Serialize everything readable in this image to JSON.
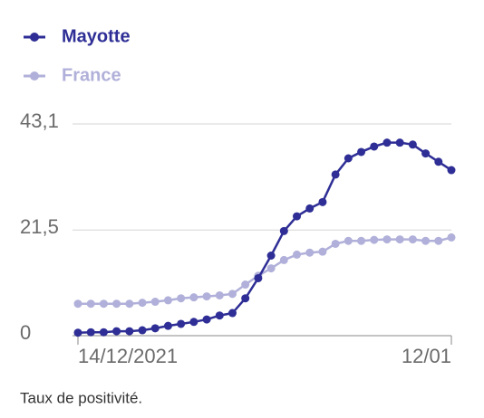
{
  "chart_data": {
    "type": "line",
    "categories": [
      "14/12/2021",
      null,
      null,
      null,
      null,
      null,
      null,
      null,
      null,
      null,
      null,
      null,
      null,
      null,
      null,
      null,
      null,
      null,
      null,
      null,
      null,
      null,
      null,
      null,
      null,
      null,
      null,
      null,
      null,
      "12/01"
    ],
    "series": [
      {
        "name": "Mayotte",
        "color": "#2e2e96",
        "values": [
          0.6,
          0.7,
          0.7,
          0.9,
          0.9,
          1.1,
          1.5,
          2.0,
          2.4,
          2.8,
          3.3,
          4.1,
          4.6,
          7.6,
          11.7,
          16.3,
          21.3,
          24.3,
          25.9,
          27.2,
          32.8,
          36.1,
          37.4,
          38.5,
          39.3,
          39.3,
          38.9,
          37.1,
          35.4,
          33.7
        ]
      },
      {
        "name": "France",
        "color": "#b0b0da",
        "values": [
          6.5,
          6.5,
          6.5,
          6.5,
          6.5,
          6.7,
          6.9,
          7.2,
          7.6,
          7.8,
          8.0,
          8.2,
          8.5,
          10.4,
          12.2,
          13.7,
          15.4,
          16.5,
          16.9,
          17.1,
          18.7,
          19.3,
          19.3,
          19.5,
          19.6,
          19.6,
          19.6,
          19.3,
          19.3,
          20.0
        ]
      }
    ],
    "ylim": [
      0,
      43.1
    ],
    "yticks": [
      0,
      {
        "value": 21.5,
        "label": "21,5"
      },
      {
        "value": 43.1,
        "label": "43,1"
      }
    ],
    "grid": true,
    "legend": "top",
    "note": "Taux de positivité."
  }
}
